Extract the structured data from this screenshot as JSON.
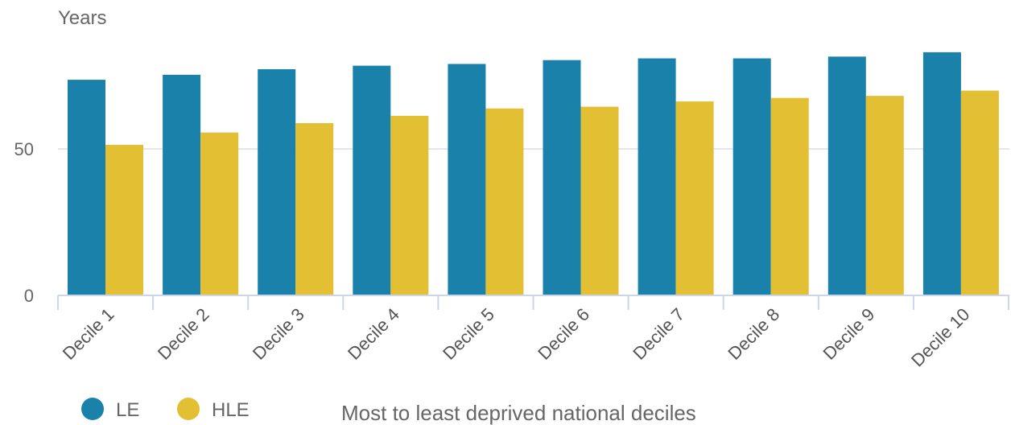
{
  "chart_data": {
    "type": "bar",
    "ylabel": "Years",
    "xlabel": "Most to least deprived national deciles",
    "categories": [
      "Decile 1",
      "Decile 2",
      "Decile 3",
      "Decile 4",
      "Decile 5",
      "Decile 6",
      "Decile 7",
      "Decile 8",
      "Decile 9",
      "Decile 10"
    ],
    "series": [
      {
        "name": "LE",
        "color": "#1a82aa",
        "values": [
          73.6,
          75.3,
          77.2,
          78.4,
          79.0,
          80.3,
          80.9,
          80.9,
          81.5,
          83.0
        ]
      },
      {
        "name": "HLE",
        "color": "#e3c033",
        "values": [
          51.4,
          55.6,
          58.8,
          61.3,
          63.8,
          64.4,
          66.2,
          67.4,
          68.1,
          69.9
        ]
      }
    ],
    "ylim": [
      0,
      100
    ],
    "yticks": [
      0,
      50
    ],
    "grid": true,
    "legend_position": "bottom-left"
  }
}
